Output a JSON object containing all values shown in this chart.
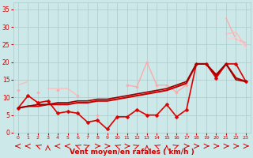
{
  "bg_color": "#cce8e8",
  "grid_color": "#aacccc",
  "xlabel": "Vent moyen/en rafales ( km/h )",
  "xlabel_color": "#cc0000",
  "tick_color": "#cc0000",
  "x_values": [
    0,
    1,
    2,
    3,
    4,
    5,
    6,
    7,
    8,
    9,
    10,
    11,
    12,
    13,
    14,
    15,
    16,
    17,
    18,
    19,
    20,
    21,
    22,
    23
  ],
  "series": [
    {
      "name": "upper_fan_top",
      "color": "#ffaaaa",
      "linewidth": 1.0,
      "marker": null,
      "y": [
        13.5,
        null,
        null,
        null,
        null,
        null,
        null,
        null,
        null,
        null,
        null,
        null,
        null,
        null,
        null,
        null,
        null,
        null,
        null,
        null,
        null,
        32.5,
        26.5,
        25.5
      ]
    },
    {
      "name": "upper_fan_mid1",
      "color": "#ffbbbb",
      "linewidth": 1.0,
      "marker": null,
      "y": [
        13.5,
        null,
        null,
        null,
        null,
        null,
        null,
        null,
        null,
        null,
        null,
        null,
        null,
        null,
        null,
        null,
        null,
        null,
        null,
        null,
        null,
        28.0,
        28.5,
        24.5
      ]
    },
    {
      "name": "upper_fan_mid2",
      "color": "#ffcccc",
      "linewidth": 1.0,
      "marker": null,
      "y": [
        13.5,
        null,
        null,
        null,
        null,
        null,
        null,
        null,
        null,
        null,
        null,
        null,
        null,
        null,
        null,
        null,
        null,
        null,
        null,
        null,
        null,
        26.5,
        27.0,
        24.0
      ]
    },
    {
      "name": "med_zigzag_light",
      "color": "#ffaaaa",
      "linewidth": 1.0,
      "marker": "D",
      "markersize": 2.0,
      "y": [
        12.0,
        null,
        11.5,
        null,
        12.0,
        null,
        10.5,
        null,
        5.0,
        null,
        null,
        13.5,
        13.0,
        20.0,
        13.5,
        13.5,
        11.5,
        13.5,
        null,
        null,
        null,
        null,
        null,
        null
      ]
    },
    {
      "name": "lower_light_line",
      "color": "#ffbbbb",
      "linewidth": 1.0,
      "marker": null,
      "y": [
        13.5,
        14.5,
        null,
        12.5,
        12.5,
        12.5,
        10.5,
        null,
        null,
        null,
        null,
        null,
        null,
        null,
        null,
        13.5,
        null,
        null,
        null,
        null,
        null,
        null,
        null,
        null
      ]
    },
    {
      "name": "main_dark_zigzag",
      "color": "#dd0000",
      "linewidth": 1.2,
      "marker": "D",
      "markersize": 2.5,
      "y": [
        7.0,
        10.5,
        8.5,
        9.0,
        5.5,
        6.0,
        5.5,
        3.0,
        3.5,
        1.0,
        4.5,
        4.5,
        6.5,
        5.0,
        5.0,
        8.0,
        4.5,
        6.5,
        19.5,
        19.5,
        15.5,
        19.5,
        19.5,
        14.5
      ]
    },
    {
      "name": "dark_rising_line",
      "color": "#cc0000",
      "linewidth": 1.5,
      "marker": null,
      "y": [
        7.0,
        7.5,
        7.5,
        8.0,
        8.0,
        8.0,
        8.5,
        8.5,
        9.0,
        9.0,
        9.5,
        10.0,
        10.5,
        11.0,
        11.5,
        12.0,
        13.0,
        14.0,
        19.5,
        19.5,
        16.0,
        19.5,
        15.5,
        14.5
      ]
    },
    {
      "name": "dark_rising_line2",
      "color": "#990000",
      "linewidth": 1.2,
      "marker": null,
      "y": [
        7.0,
        7.5,
        8.0,
        8.0,
        8.5,
        8.5,
        9.0,
        9.0,
        9.5,
        9.5,
        10.0,
        10.5,
        11.0,
        11.5,
        12.0,
        12.5,
        13.5,
        14.5,
        19.5,
        19.5,
        16.5,
        19.5,
        15.0,
        14.5
      ]
    }
  ],
  "ylim": [
    0,
    37
  ],
  "xlim": [
    -0.5,
    23.5
  ],
  "yticks": [
    0,
    5,
    10,
    15,
    20,
    25,
    30,
    35
  ],
  "xticks": [
    0,
    1,
    2,
    3,
    4,
    5,
    6,
    7,
    8,
    9,
    10,
    11,
    12,
    13,
    14,
    15,
    16,
    17,
    18,
    19,
    20,
    21,
    22,
    23
  ]
}
